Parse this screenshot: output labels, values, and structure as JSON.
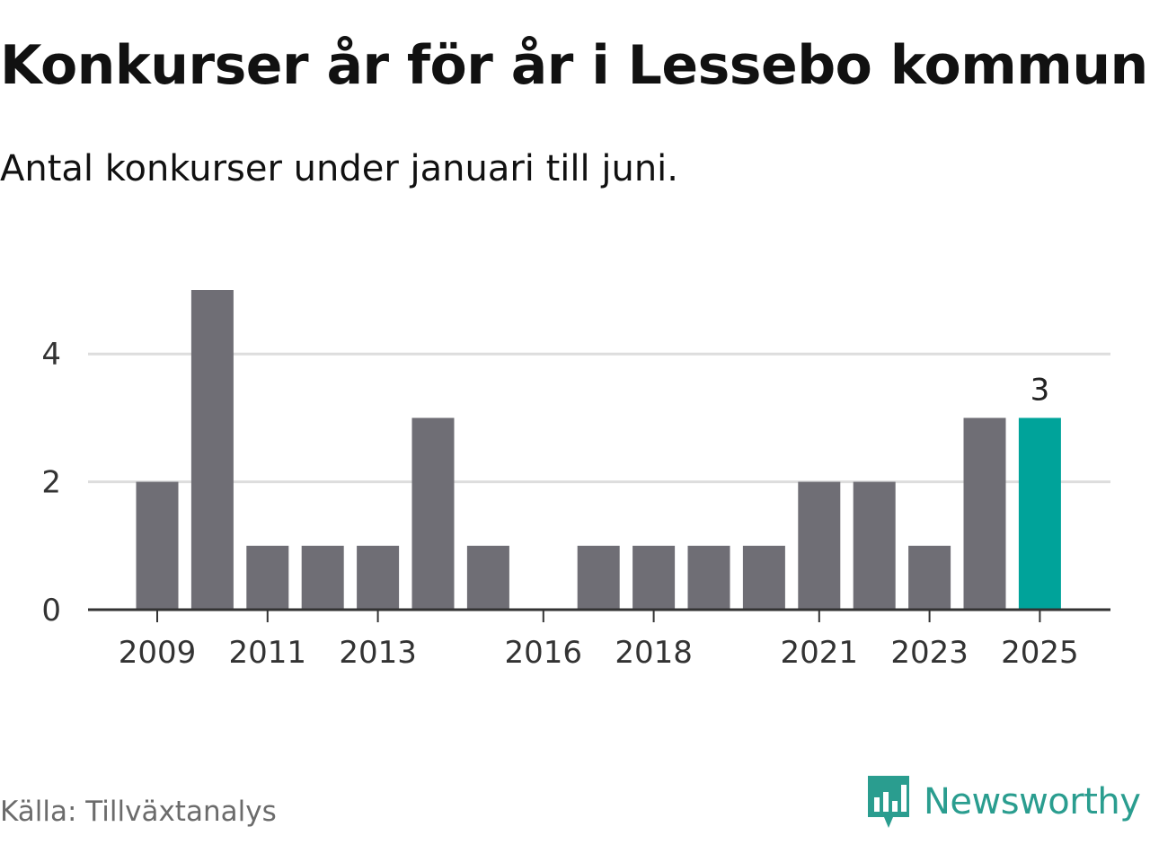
{
  "header": {
    "title": "Konkurser år för år i Lessebo kommun",
    "subtitle": "Antal konkurser under januari till juni."
  },
  "footer": {
    "source": "Källa: Tillväxtanalys",
    "brand": "Newsworthy",
    "brand_icon": "newsworthy-chart-logo-icon"
  },
  "colors": {
    "bar": "#6f6e75",
    "highlight": "#00a39a",
    "grid": "#dddddd",
    "axis": "#333333",
    "text": "#333333",
    "brand": "#2a9d8f"
  },
  "chart_data": {
    "type": "bar",
    "categories": [
      "2009",
      "2010",
      "2011",
      "2012",
      "2013",
      "2014",
      "2015",
      "2016",
      "2017",
      "2018",
      "2019",
      "2020",
      "2021",
      "2022",
      "2023",
      "2024",
      "2025"
    ],
    "values": [
      2,
      5,
      1,
      1,
      1,
      3,
      1,
      0,
      1,
      1,
      1,
      1,
      2,
      2,
      1,
      3,
      3
    ],
    "x_tick_labels": [
      "2009",
      "2011",
      "2013",
      "2016",
      "2018",
      "2021",
      "2023",
      "2025"
    ],
    "y_ticks": [
      0,
      2,
      4
    ],
    "ylim": [
      0,
      5
    ],
    "highlight_category": "2025",
    "data_labels": [
      {
        "category": "2025",
        "text": "3"
      }
    ],
    "grid": true,
    "xlabel": "",
    "ylabel": ""
  }
}
